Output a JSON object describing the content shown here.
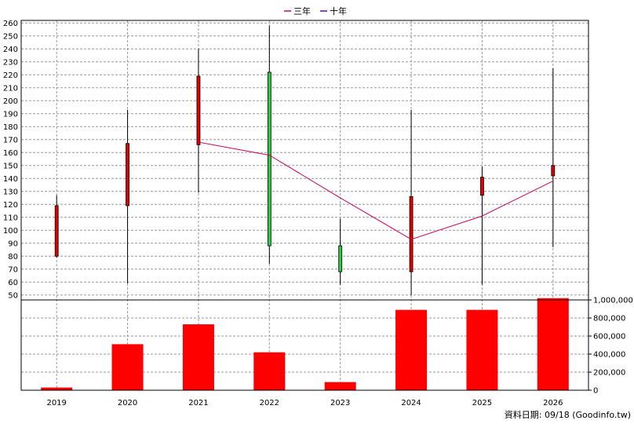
{
  "chart_data": {
    "type": "candlestick",
    "categories": [
      "2019",
      "2020",
      "2021",
      "2022",
      "2023",
      "2024",
      "2025",
      "2026"
    ],
    "legend": [
      {
        "name": "三年",
        "color": "#cc0066"
      },
      {
        "name": "十年",
        "color": "#6600cc"
      }
    ],
    "price": {
      "yticks": [
        50,
        60,
        70,
        80,
        90,
        100,
        110,
        120,
        130,
        140,
        150,
        160,
        170,
        180,
        190,
        200,
        210,
        220,
        230,
        240,
        250,
        260
      ],
      "ylim": [
        45,
        262
      ],
      "candles": [
        {
          "open": 119,
          "close": 80,
          "high": 127,
          "low": 79,
          "color": "#e00000"
        },
        {
          "open": 167,
          "close": 119,
          "high": 193,
          "low": 59,
          "color": "#e00000"
        },
        {
          "open": 219,
          "close": 166,
          "high": 240,
          "low": 129,
          "color": "#e00000"
        },
        {
          "open": 88,
          "close": 222,
          "high": 258,
          "low": 74,
          "color": "#2ecc40"
        },
        {
          "open": 68,
          "close": 88,
          "high": 109,
          "low": 58,
          "color": "#2ecc40"
        },
        {
          "open": 126,
          "close": 68,
          "high": 193,
          "low": 50,
          "color": "#e00000"
        },
        {
          "open": 141,
          "close": 127,
          "high": 149,
          "low": 58,
          "color": "#e00000"
        },
        {
          "open": 150,
          "close": 142,
          "high": 225,
          "low": 87,
          "color": "#e00000"
        }
      ],
      "three_year_line": [
        null,
        null,
        168,
        158,
        125,
        93,
        111,
        138
      ]
    },
    "volume": {
      "yticks": [
        "0",
        "200,000",
        "400,000",
        "600,000",
        "800,000",
        "1,000,000"
      ],
      "ymax": 1000000,
      "values": [
        30000,
        510000,
        730000,
        420000,
        90000,
        890000,
        890000,
        1020000
      ],
      "color": "#ff0000"
    }
  },
  "footer": "資料日期: 09/18  (Goodinfo.tw)"
}
